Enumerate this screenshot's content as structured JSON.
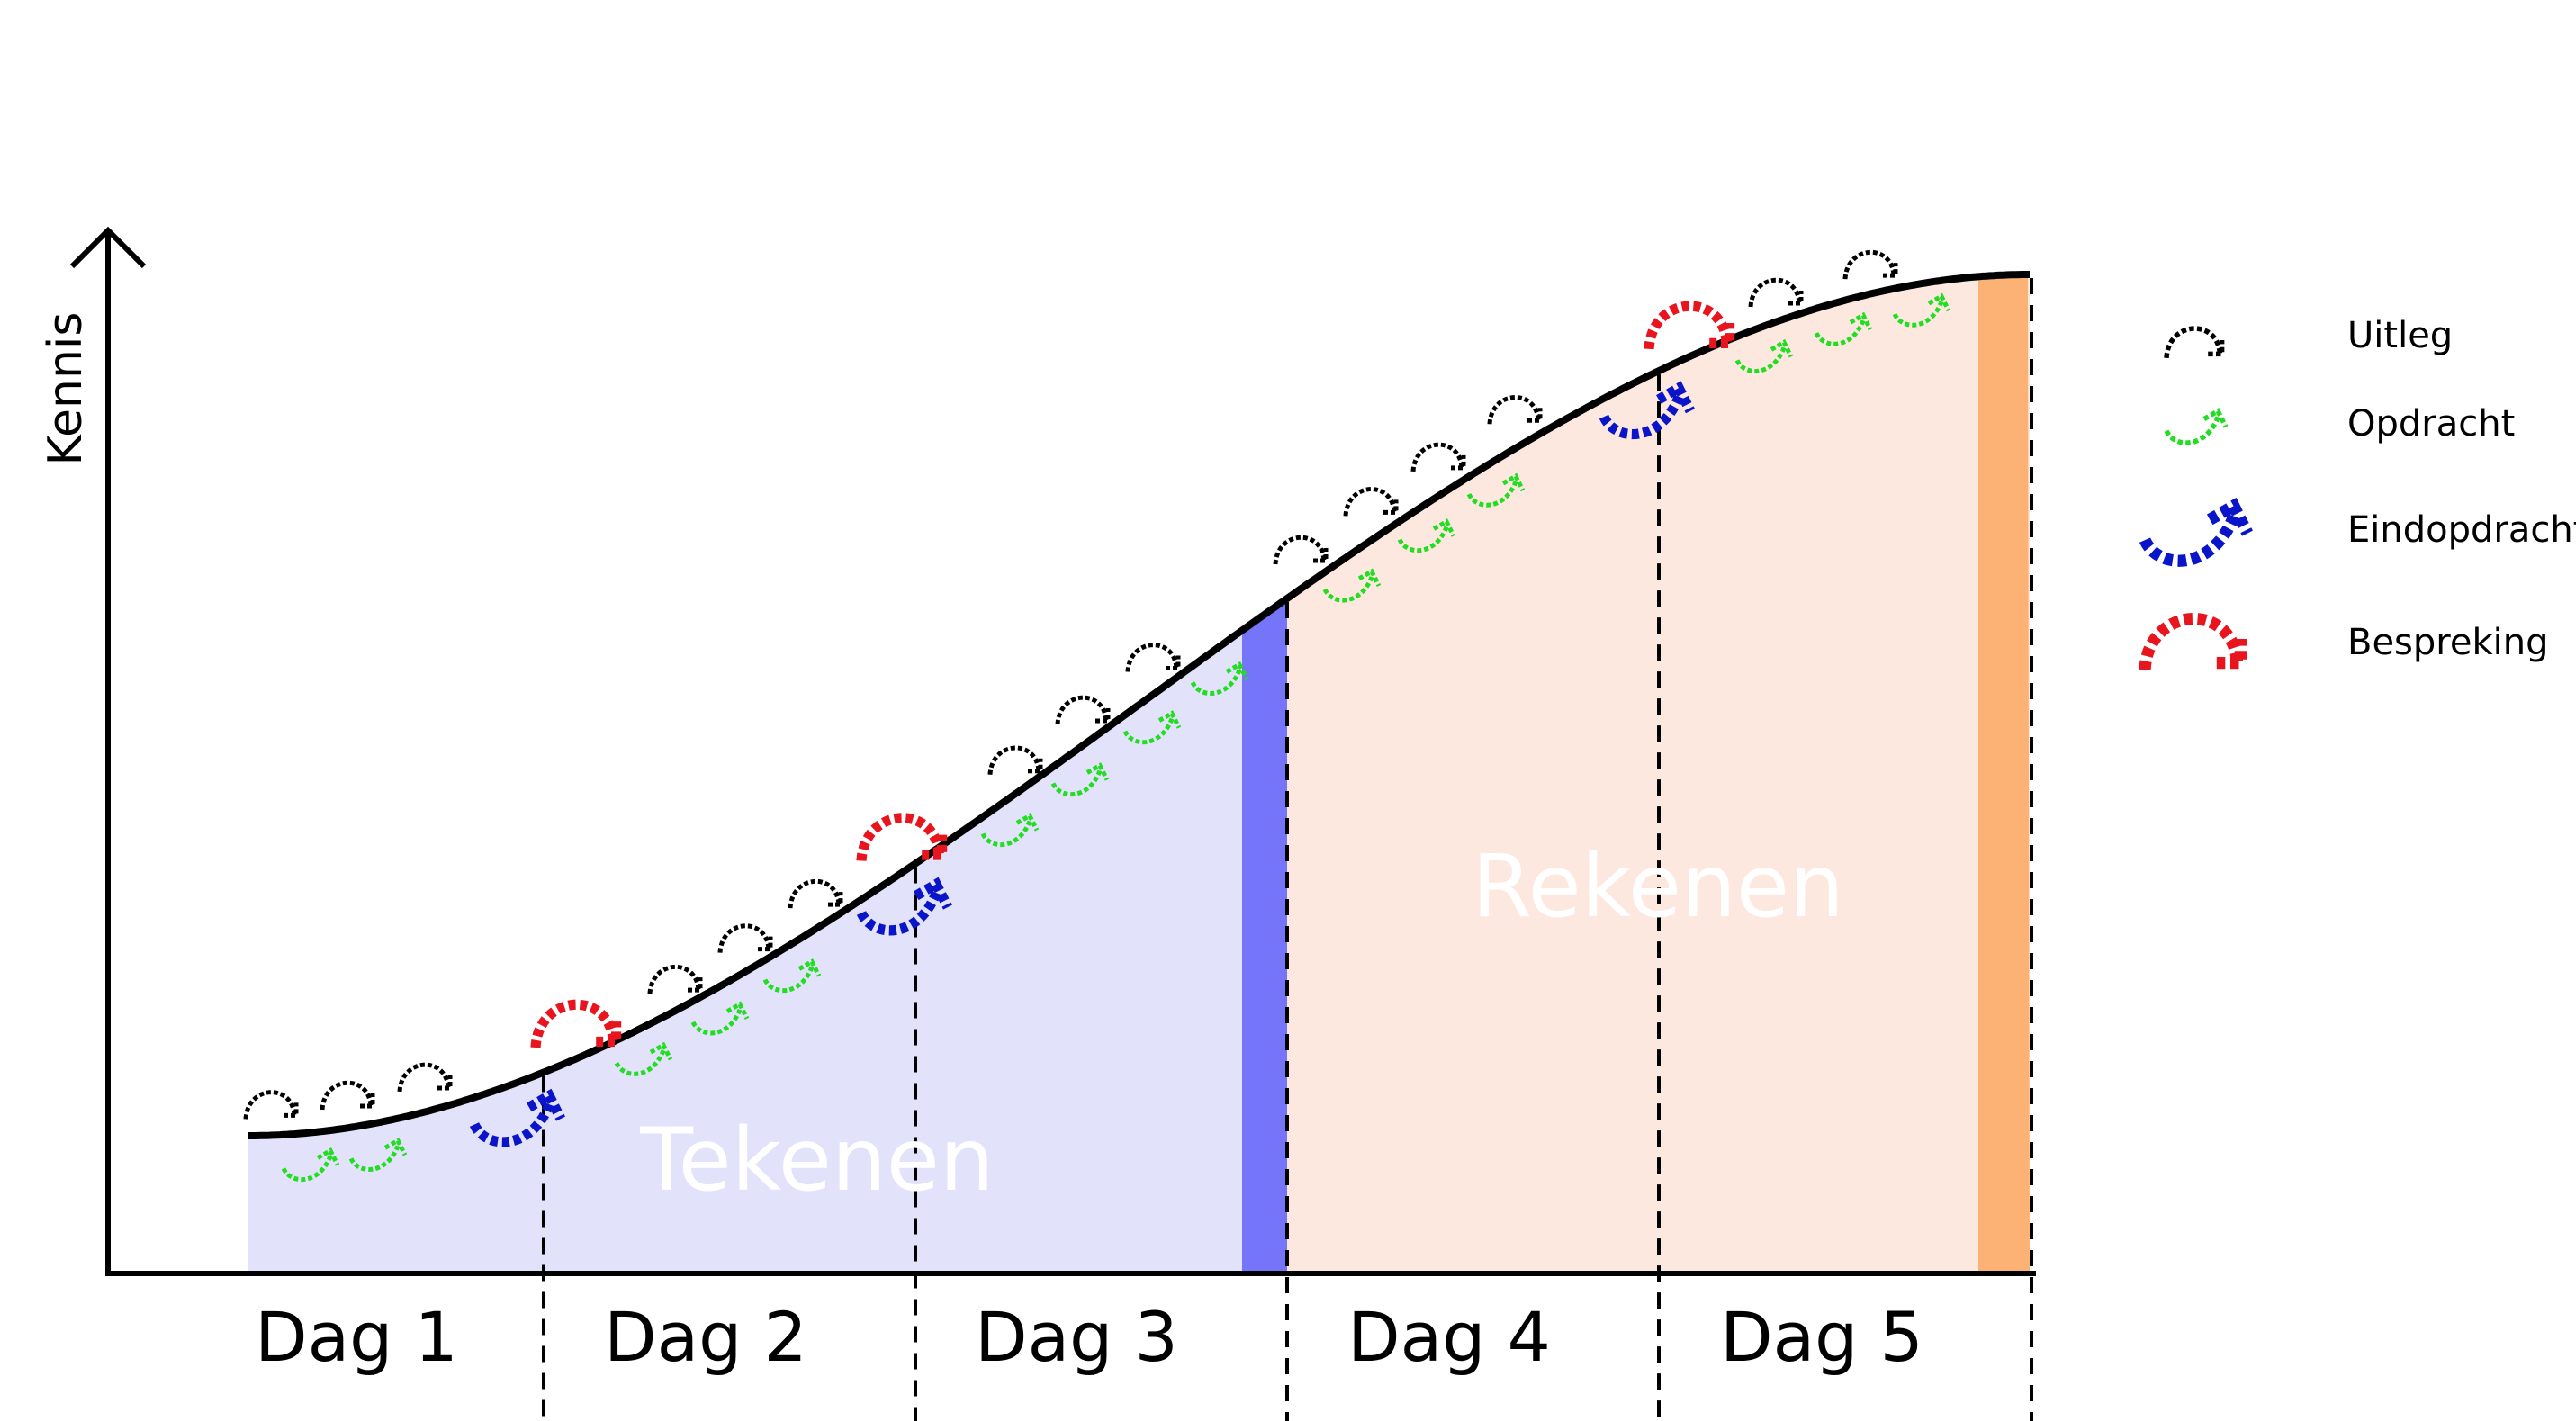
{
  "axis": {
    "y_label": "Kennis"
  },
  "days": [
    "Dag 1",
    "Dag 2",
    "Dag 3",
    "Dag 4",
    "Dag 5"
  ],
  "regions": {
    "tekenen": {
      "label": "Tekenen",
      "fill": "#e2e2fb",
      "end_band": "#7575fa"
    },
    "rekenen": {
      "label": "Rekenen",
      "fill": "#fde8e0",
      "end_band": "#fbb274"
    }
  },
  "legend": [
    {
      "label": "Uitleg",
      "color": "#000000",
      "icon": "uitleg-arrow-icon"
    },
    {
      "label": "Opdracht",
      "color": "#22dd22",
      "icon": "opdracht-arrow-icon"
    },
    {
      "label": "Eindopdracht",
      "color": "#0a14c8",
      "icon": "eindopdracht-arrow-icon"
    },
    {
      "label": "Bespreking",
      "color": "#e8141e",
      "icon": "bespreking-arrow-icon"
    }
  ]
}
